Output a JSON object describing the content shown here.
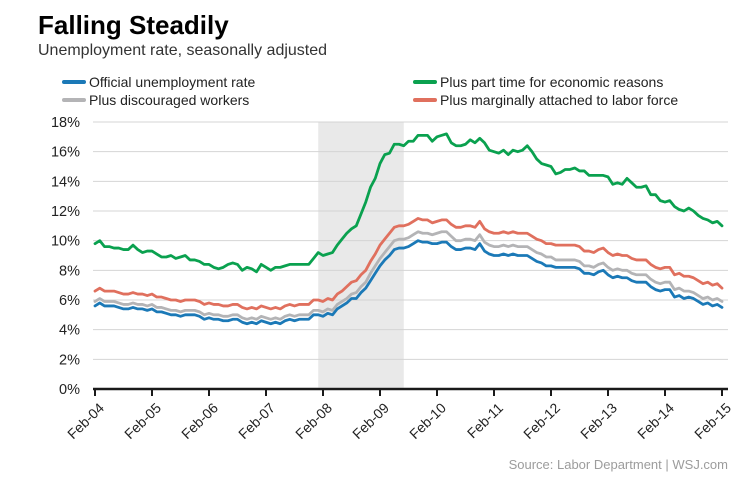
{
  "header": {
    "title": "Falling Steadily",
    "subtitle": "Unemployment rate, seasonally adjusted"
  },
  "footer": {
    "source": "Source: Labor Department  |  WSJ.com"
  },
  "chart_data": {
    "type": "line",
    "title": "Falling Steadily",
    "subtitle": "Unemployment rate, seasonally adjusted",
    "source": "Source: Labor Department  |  WSJ.com",
    "x_start_month": "Feb-2004",
    "x_end_month": "Feb-2015",
    "x_tick_labels": [
      "Feb-04",
      "Feb-05",
      "Feb-06",
      "Feb-07",
      "Feb-08",
      "Feb-09",
      "Feb-10",
      "Feb-11",
      "Feb-12",
      "Feb-13",
      "Feb-14",
      "Feb-15"
    ],
    "x_tick_every": 12,
    "y_tick_labels": [
      "0%",
      "2%",
      "4%",
      "6%",
      "8%",
      "10%",
      "12%",
      "14%",
      "16%",
      "18%"
    ],
    "ylim": [
      0,
      18
    ],
    "y_tick_step": 2,
    "grid": "horizontal",
    "legend_position": "top-two-columns",
    "recession_band": {
      "start_index": 47,
      "end_index": 65,
      "color": "#e9e9e9"
    },
    "colors": {
      "grid": "#d4d4d4",
      "axis": "#1a1a1a",
      "tick_label": "#222222",
      "band": "#e9e9e9",
      "source_text": "#9c9c9c"
    },
    "series": [
      {
        "name": "Official unemployment rate",
        "color": "#1b79b7",
        "values": [
          5.6,
          5.8,
          5.6,
          5.6,
          5.6,
          5.5,
          5.4,
          5.4,
          5.5,
          5.4,
          5.4,
          5.3,
          5.4,
          5.2,
          5.2,
          5.1,
          5.0,
          5.0,
          4.9,
          5.0,
          5.0,
          5.0,
          4.9,
          4.7,
          4.8,
          4.7,
          4.7,
          4.6,
          4.6,
          4.7,
          4.7,
          4.5,
          4.4,
          4.5,
          4.4,
          4.6,
          4.5,
          4.4,
          4.5,
          4.4,
          4.6,
          4.7,
          4.6,
          4.7,
          4.7,
          4.7,
          5.0,
          5.0,
          4.9,
          5.1,
          5.0,
          5.4,
          5.6,
          5.8,
          6.1,
          6.1,
          6.5,
          6.8,
          7.3,
          7.8,
          8.3,
          8.7,
          9.0,
          9.4,
          9.5,
          9.5,
          9.6,
          9.8,
          10.0,
          9.9,
          9.9,
          9.8,
          9.8,
          9.9,
          9.9,
          9.6,
          9.4,
          9.4,
          9.5,
          9.5,
          9.4,
          9.8,
          9.3,
          9.1,
          9.0,
          9.0,
          9.1,
          9.0,
          9.1,
          9.0,
          9.0,
          9.0,
          8.8,
          8.6,
          8.5,
          8.3,
          8.3,
          8.2,
          8.2,
          8.2,
          8.2,
          8.2,
          8.1,
          7.8,
          7.8,
          7.7,
          7.9,
          8.0,
          7.7,
          7.5,
          7.6,
          7.5,
          7.5,
          7.3,
          7.2,
          7.2,
          7.2,
          6.9,
          6.7,
          6.6,
          6.7,
          6.7,
          6.2,
          6.3,
          6.1,
          6.2,
          6.1,
          5.9,
          5.7,
          5.8,
          5.6,
          5.7,
          5.5
        ]
      },
      {
        "name": "Plus discouraged workers",
        "color": "#b4b4b6",
        "values": [
          5.9,
          6.1,
          5.9,
          5.9,
          5.9,
          5.8,
          5.7,
          5.7,
          5.8,
          5.7,
          5.7,
          5.6,
          5.7,
          5.5,
          5.5,
          5.4,
          5.3,
          5.3,
          5.2,
          5.3,
          5.3,
          5.3,
          5.2,
          5.0,
          5.1,
          5.0,
          5.0,
          4.9,
          4.9,
          5.0,
          5.0,
          4.8,
          4.7,
          4.8,
          4.7,
          4.9,
          4.8,
          4.7,
          4.8,
          4.7,
          4.9,
          5.0,
          4.9,
          5.0,
          5.0,
          5.0,
          5.3,
          5.3,
          5.2,
          5.4,
          5.3,
          5.7,
          5.9,
          6.1,
          6.4,
          6.5,
          6.9,
          7.2,
          7.8,
          8.3,
          8.8,
          9.2,
          9.6,
          10.0,
          10.1,
          10.1,
          10.2,
          10.4,
          10.6,
          10.5,
          10.5,
          10.4,
          10.5,
          10.6,
          10.6,
          10.3,
          10.0,
          10.0,
          10.1,
          10.1,
          10.0,
          10.4,
          9.9,
          9.7,
          9.6,
          9.6,
          9.7,
          9.6,
          9.7,
          9.6,
          9.6,
          9.6,
          9.4,
          9.2,
          9.1,
          8.9,
          8.9,
          8.7,
          8.7,
          8.7,
          8.7,
          8.7,
          8.6,
          8.3,
          8.3,
          8.2,
          8.4,
          8.5,
          8.2,
          8.0,
          8.1,
          8.0,
          8.0,
          7.8,
          7.7,
          7.7,
          7.7,
          7.4,
          7.2,
          7.1,
          7.2,
          7.2,
          6.7,
          6.8,
          6.6,
          6.6,
          6.5,
          6.3,
          6.1,
          6.2,
          6.0,
          6.1,
          5.9
        ]
      },
      {
        "name": "Plus part time for economic reasons",
        "color": "#0aa14f",
        "values": [
          9.8,
          10.0,
          9.6,
          9.6,
          9.5,
          9.5,
          9.4,
          9.4,
          9.7,
          9.4,
          9.2,
          9.3,
          9.3,
          9.1,
          8.9,
          8.9,
          9.0,
          8.8,
          8.9,
          9.0,
          8.7,
          8.7,
          8.6,
          8.4,
          8.4,
          8.2,
          8.1,
          8.2,
          8.4,
          8.5,
          8.4,
          8.0,
          8.2,
          8.1,
          7.9,
          8.4,
          8.2,
          8.0,
          8.2,
          8.2,
          8.3,
          8.4,
          8.4,
          8.4,
          8.4,
          8.4,
          8.8,
          9.2,
          9.0,
          9.1,
          9.2,
          9.7,
          10.1,
          10.5,
          10.8,
          11.0,
          11.8,
          12.6,
          13.6,
          14.2,
          15.2,
          15.8,
          15.9,
          16.5,
          16.5,
          16.4,
          16.7,
          16.7,
          17.1,
          17.1,
          17.1,
          16.7,
          17.0,
          17.1,
          17.2,
          16.6,
          16.4,
          16.4,
          16.5,
          16.8,
          16.6,
          16.9,
          16.6,
          16.1,
          16.0,
          15.9,
          16.1,
          15.8,
          16.1,
          16.0,
          16.1,
          16.4,
          16.0,
          15.5,
          15.2,
          15.1,
          15.0,
          14.5,
          14.6,
          14.8,
          14.8,
          14.9,
          14.7,
          14.7,
          14.4,
          14.4,
          14.4,
          14.4,
          14.3,
          13.8,
          13.9,
          13.8,
          14.2,
          13.9,
          13.6,
          13.6,
          13.7,
          13.1,
          13.1,
          12.7,
          12.6,
          12.7,
          12.3,
          12.1,
          12.0,
          12.2,
          12.0,
          11.7,
          11.5,
          11.4,
          11.2,
          11.3,
          11.0
        ]
      },
      {
        "name": "Plus marginally attached to labor force",
        "color": "#e0705e",
        "values": [
          6.6,
          6.8,
          6.6,
          6.6,
          6.6,
          6.5,
          6.4,
          6.4,
          6.5,
          6.4,
          6.4,
          6.3,
          6.4,
          6.2,
          6.2,
          6.1,
          6.0,
          6.0,
          5.9,
          6.0,
          6.0,
          6.0,
          5.9,
          5.7,
          5.8,
          5.7,
          5.7,
          5.6,
          5.6,
          5.7,
          5.7,
          5.5,
          5.4,
          5.5,
          5.4,
          5.6,
          5.5,
          5.4,
          5.5,
          5.4,
          5.6,
          5.7,
          5.6,
          5.7,
          5.7,
          5.7,
          6.0,
          6.0,
          5.9,
          6.1,
          6.0,
          6.4,
          6.6,
          6.9,
          7.2,
          7.3,
          7.7,
          8.0,
          8.6,
          9.1,
          9.7,
          10.1,
          10.5,
          10.9,
          11.0,
          11.0,
          11.1,
          11.3,
          11.5,
          11.4,
          11.4,
          11.2,
          11.3,
          11.4,
          11.4,
          11.1,
          10.9,
          10.9,
          11.0,
          11.0,
          10.9,
          11.3,
          10.8,
          10.6,
          10.5,
          10.5,
          10.6,
          10.5,
          10.6,
          10.5,
          10.5,
          10.5,
          10.3,
          10.1,
          10.0,
          9.8,
          9.8,
          9.7,
          9.7,
          9.7,
          9.7,
          9.7,
          9.6,
          9.3,
          9.3,
          9.2,
          9.4,
          9.5,
          9.2,
          9.0,
          9.1,
          9.0,
          9.0,
          8.8,
          8.7,
          8.7,
          8.7,
          8.4,
          8.2,
          8.1,
          8.2,
          8.2,
          7.7,
          7.8,
          7.6,
          7.6,
          7.5,
          7.3,
          7.1,
          7.2,
          7.0,
          7.1,
          6.8
        ]
      }
    ],
    "legend_columns": {
      "left": [
        0,
        1
      ],
      "right": [
        2,
        3
      ]
    }
  }
}
